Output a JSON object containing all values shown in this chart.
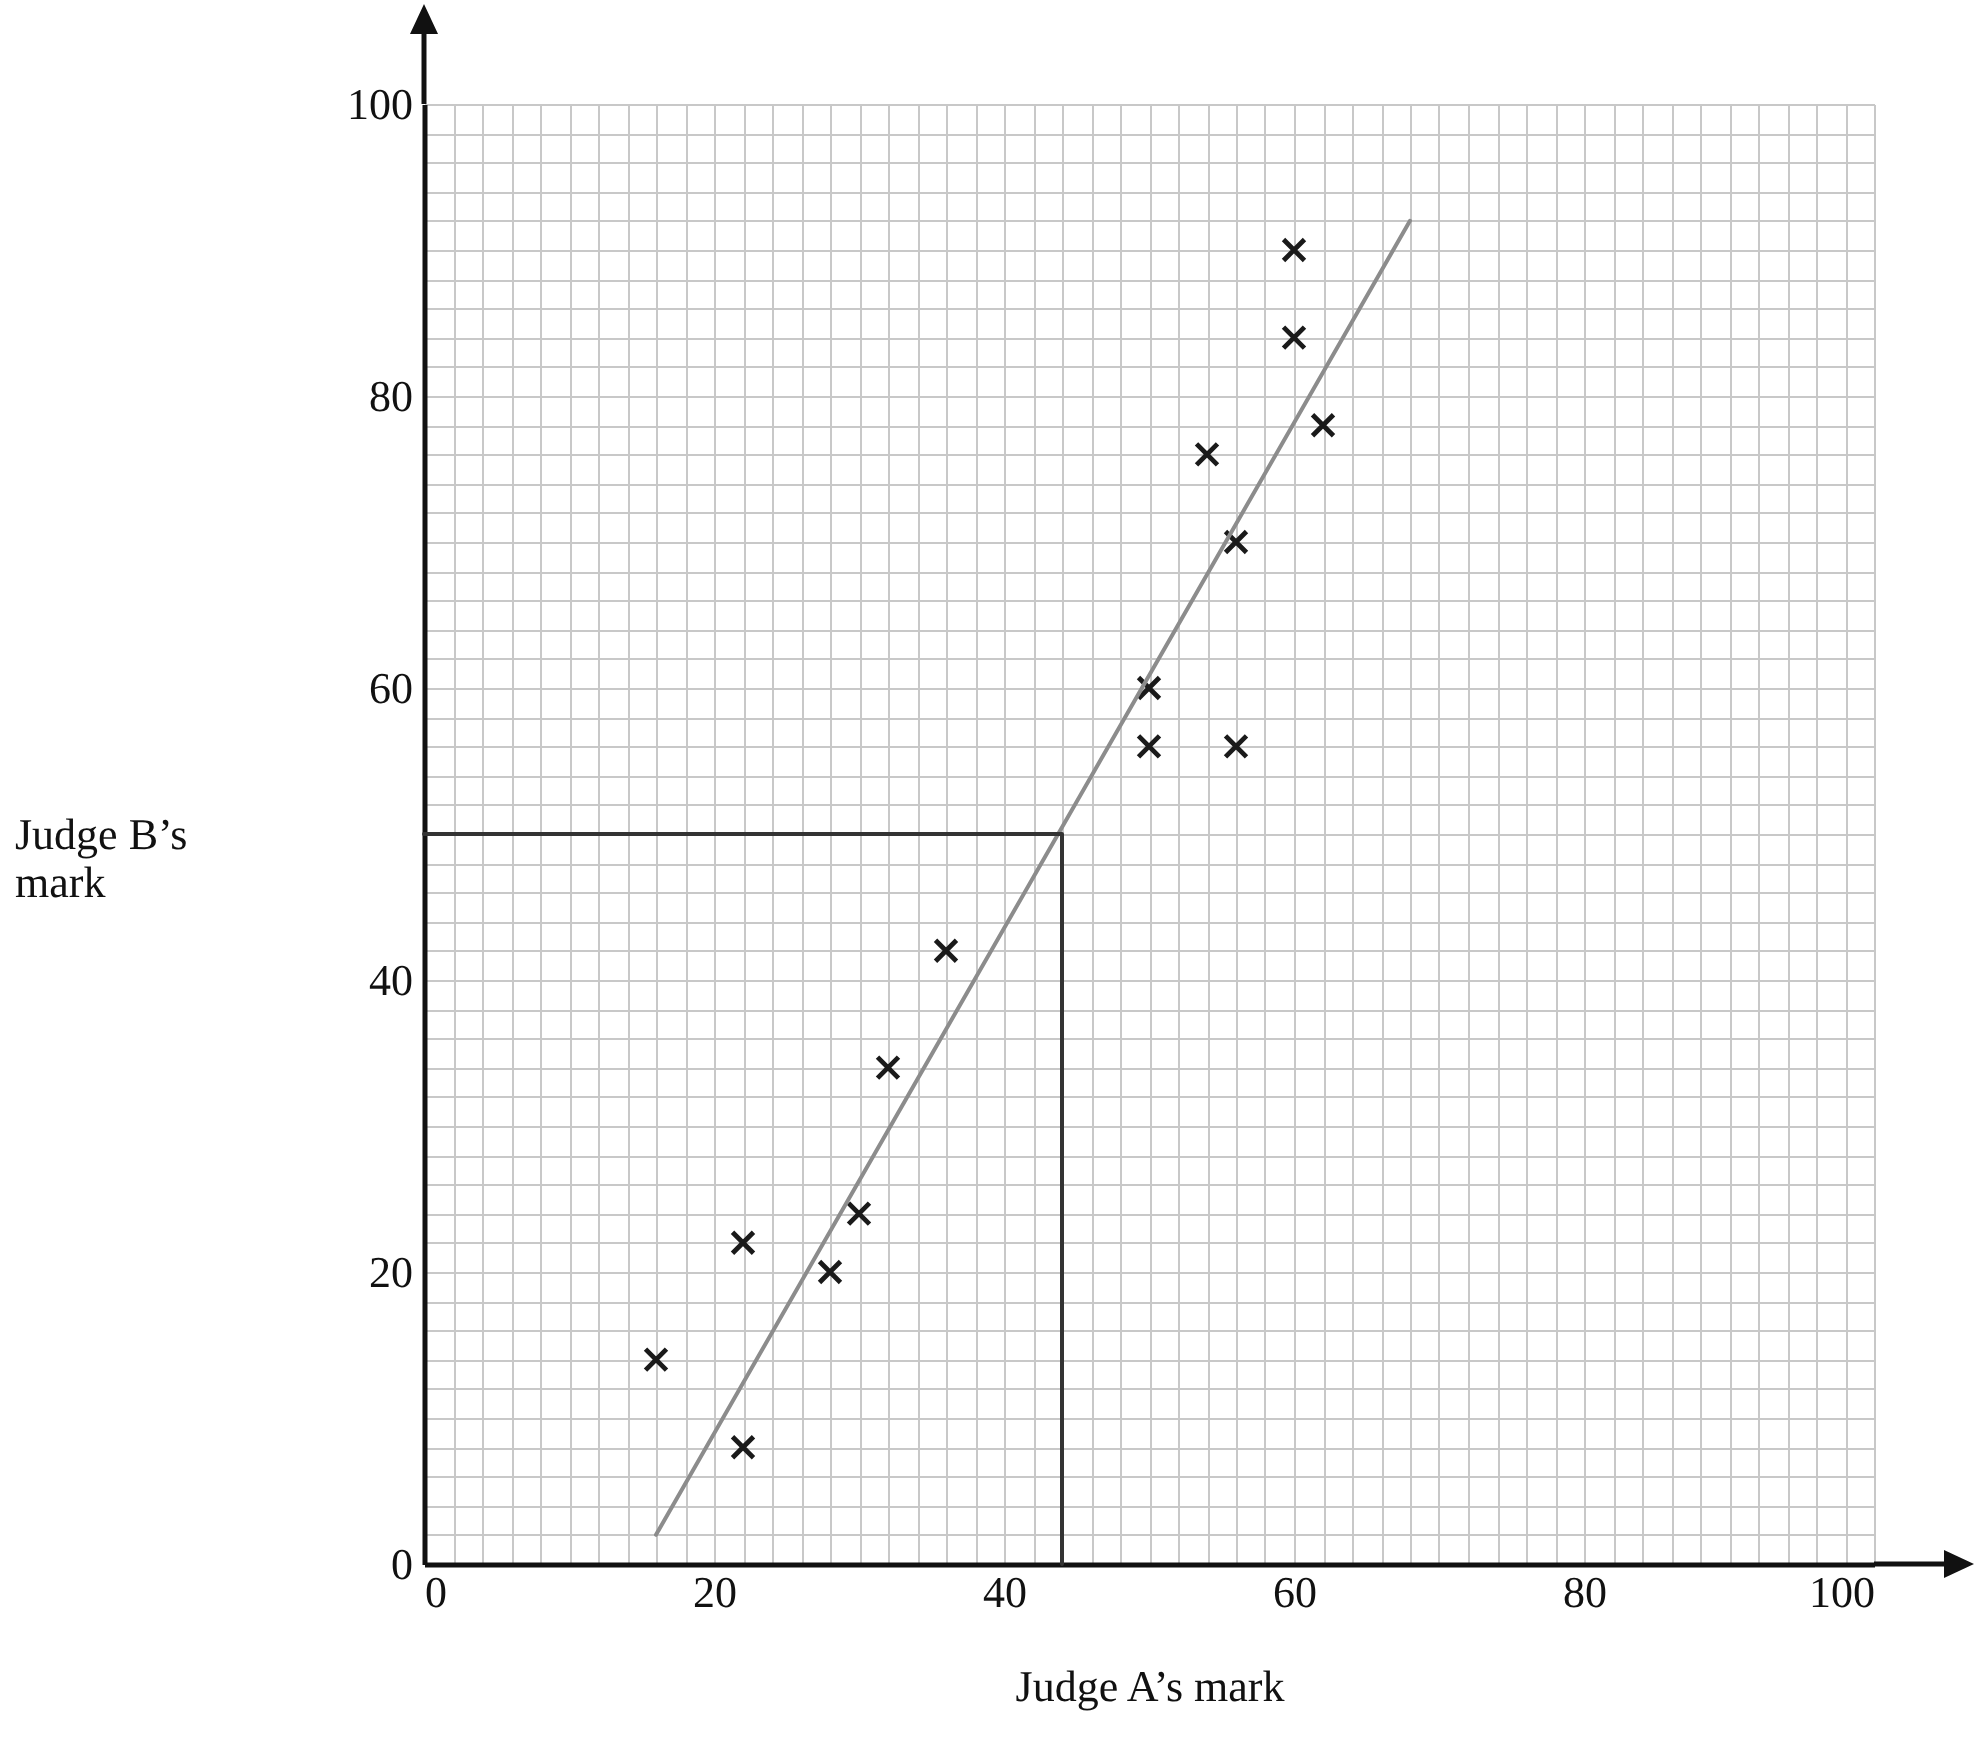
{
  "chart_data": {
    "type": "scatter",
    "xlabel": "Judge A’s mark",
    "ylabel": "Judge B’s mark",
    "xlim": [
      0,
      100
    ],
    "ylim": [
      0,
      100
    ],
    "xticks": [
      0,
      {
        "value": 2,
        "label": null
      },
      {
        "value": 4,
        "label": null
      },
      {
        "value": 6,
        "label": null
      },
      {
        "value": 8,
        "label": null
      },
      {
        "value": 10,
        "label": null
      },
      {
        "value": 12,
        "label": null
      },
      {
        "value": 14,
        "label": null
      },
      {
        "value": 16,
        "label": null
      },
      {
        "value": 18,
        "label": null
      },
      20,
      {
        "value": 22,
        "label": null
      },
      {
        "value": 24,
        "label": null
      },
      {
        "value": 26,
        "label": null
      },
      {
        "value": 28,
        "label": null
      },
      {
        "value": 30,
        "label": null
      },
      {
        "value": 32,
        "label": null
      },
      {
        "value": 34,
        "label": null
      },
      {
        "value": 36,
        "label": null
      },
      {
        "value": 38,
        "label": null
      },
      40,
      {
        "value": 42,
        "label": null
      },
      {
        "value": 44,
        "label": null
      },
      {
        "value": 46,
        "label": null
      },
      {
        "value": 48,
        "label": null
      },
      {
        "value": 50,
        "label": null
      },
      {
        "value": 52,
        "label": null
      },
      {
        "value": 54,
        "label": null
      },
      {
        "value": 56,
        "label": null
      },
      {
        "value": 58,
        "label": null
      },
      60,
      {
        "value": 62,
        "label": null
      },
      {
        "value": 64,
        "label": null
      },
      {
        "value": 66,
        "label": null
      },
      {
        "value": 68,
        "label": null
      },
      {
        "value": 70,
        "label": null
      },
      {
        "value": 72,
        "label": null
      },
      {
        "value": 74,
        "label": null
      },
      {
        "value": 76,
        "label": null
      },
      {
        "value": 78,
        "label": null
      },
      80,
      {
        "value": 82,
        "label": null
      },
      {
        "value": 84,
        "label": null
      },
      {
        "value": 86,
        "label": null
      },
      {
        "value": 88,
        "label": null
      },
      {
        "value": 90,
        "label": null
      },
      {
        "value": 92,
        "label": null
      },
      {
        "value": 94,
        "label": null
      },
      {
        "value": 96,
        "label": null
      },
      {
        "value": 98,
        "label": null
      },
      100
    ],
    "yticks": [
      0,
      {
        "value": 2,
        "label": null
      },
      {
        "value": 4,
        "label": null
      },
      {
        "value": 6,
        "label": null
      },
      {
        "value": 8,
        "label": null
      },
      {
        "value": 10,
        "label": null
      },
      {
        "value": 12,
        "label": null
      },
      {
        "value": 14,
        "label": null
      },
      {
        "value": 16,
        "label": null
      },
      {
        "value": 18,
        "label": null
      },
      20,
      {
        "value": 22,
        "label": null
      },
      {
        "value": 24,
        "label": null
      },
      {
        "value": 26,
        "label": null
      },
      {
        "value": 28,
        "label": null
      },
      {
        "value": 30,
        "label": null
      },
      {
        "value": 32,
        "label": null
      },
      {
        "value": 34,
        "label": null
      },
      {
        "value": 36,
        "label": null
      },
      {
        "value": 38,
        "label": null
      },
      40,
      {
        "value": 42,
        "label": null
      },
      {
        "value": 44,
        "label": null
      },
      {
        "value": 46,
        "label": null
      },
      {
        "value": 48,
        "label": null
      },
      {
        "value": 50,
        "label": null
      },
      {
        "value": 52,
        "label": null
      },
      {
        "value": 54,
        "label": null
      },
      {
        "value": 56,
        "label": null
      },
      {
        "value": 58,
        "label": null
      },
      60,
      {
        "value": 62,
        "label": null
      },
      {
        "value": 64,
        "label": null
      },
      {
        "value": 66,
        "label": null
      },
      {
        "value": 68,
        "label": null
      },
      {
        "value": 70,
        "label": null
      },
      {
        "value": 72,
        "label": null
      },
      {
        "value": 74,
        "label": null
      },
      {
        "value": 76,
        "label": null
      },
      {
        "value": 78,
        "label": null
      },
      80,
      {
        "value": 82,
        "label": null
      },
      {
        "value": 84,
        "label": null
      },
      {
        "value": 86,
        "label": null
      },
      {
        "value": 88,
        "label": null
      },
      {
        "value": 90,
        "label": null
      },
      {
        "value": 92,
        "label": null
      },
      {
        "value": 94,
        "label": null
      },
      {
        "value": 96,
        "label": null
      },
      {
        "value": 98,
        "label": null
      },
      100
    ],
    "grid": true,
    "series": [
      {
        "marker": "cross",
        "color": "#1a1a1a",
        "x": [
          16,
          22,
          22,
          28,
          30,
          32,
          36,
          50,
          50,
          56,
          56,
          54,
          60,
          60,
          62
        ],
        "values": [
          14,
          8,
          22,
          20,
          24,
          34,
          42,
          60,
          56,
          56,
          70,
          76,
          90,
          84,
          78
        ]
      },
      {
        "type": "line",
        "color": "#8c8c8c",
        "x": [
          16,
          68
        ],
        "values": [
          2,
          92
        ]
      },
      {
        "type": "line",
        "color": "#333333",
        "x": [
          0,
          44,
          44
        ],
        "values": [
          50,
          50,
          0
        ]
      }
    ]
  }
}
